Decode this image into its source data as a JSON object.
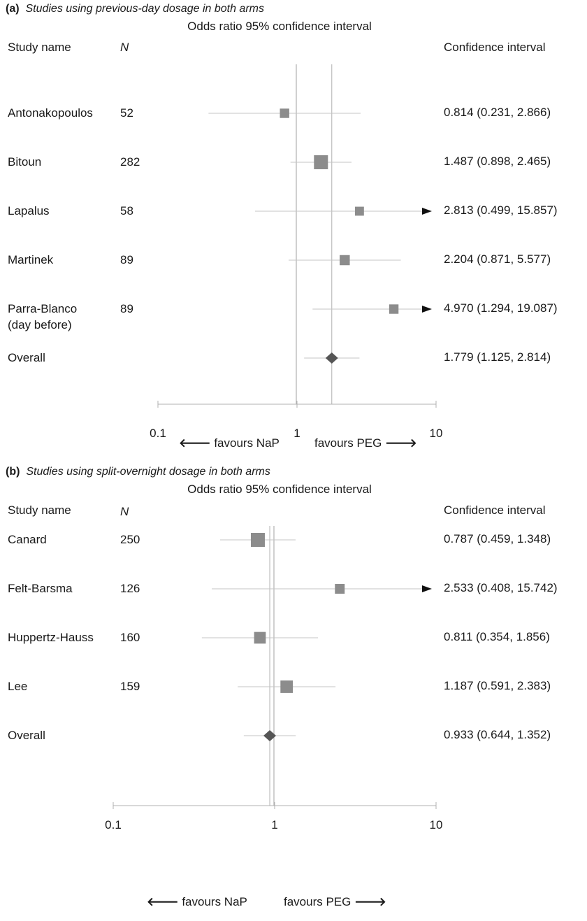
{
  "chart_data": [
    {
      "type": "forest",
      "panel_label": "(a)",
      "title": "Studies using previous-day dosage in both arms",
      "subtitle": "Odds ratio 95% confidence interval",
      "columns": {
        "study": "Study name",
        "n": "N",
        "ci": "Confidence interval"
      },
      "x_scale": "log",
      "xlim": [
        0.1,
        10
      ],
      "x_ticks": [
        "0.1",
        "1",
        "10"
      ],
      "favours_left": "favours NaP",
      "favours_right": "favours PEG",
      "studies": [
        {
          "name": [
            "Antonakopoulos"
          ],
          "n": "52",
          "or": 0.814,
          "lo": 0.231,
          "hi": 2.866,
          "weight": 0.4,
          "ci_text": "0.814 (0.231, 2.866)"
        },
        {
          "name": [
            "Bitoun"
          ],
          "n": "282",
          "or": 1.487,
          "lo": 0.898,
          "hi": 2.465,
          "weight": 1.0,
          "ci_text": "1.487 (0.898, 2.465)"
        },
        {
          "name": [
            "Lapalus"
          ],
          "n": "58",
          "or": 2.813,
          "lo": 0.499,
          "hi": 15.857,
          "weight": 0.35,
          "ci_text": "2.813 (0.499, 15.857)"
        },
        {
          "name": [
            "Martinek"
          ],
          "n": "89",
          "or": 2.204,
          "lo": 0.871,
          "hi": 5.577,
          "weight": 0.5,
          "ci_text": "2.204 (0.871, 5.577)"
        },
        {
          "name": [
            "Parra-Blanco",
            "(day before)"
          ],
          "n": "89",
          "or": 4.97,
          "lo": 1.294,
          "hi": 19.087,
          "weight": 0.4,
          "ci_text": "4.970 (1.294, 19.087)"
        }
      ],
      "overall": {
        "name": "Overall",
        "or": 1.779,
        "lo": 1.125,
        "hi": 2.814,
        "ci_text": "1.779 (1.125, 2.814)"
      }
    },
    {
      "type": "forest",
      "panel_label": "(b)",
      "title": "Studies using split-overnight dosage in both arms",
      "subtitle": "Odds ratio 95% confidence interval",
      "columns": {
        "study": "Study name",
        "n": "N",
        "ci": "Confidence interval"
      },
      "x_scale": "log",
      "xlim": [
        0.1,
        10
      ],
      "x_ticks": [
        "0.1",
        "1",
        "10"
      ],
      "favours_left": "favours NaP",
      "favours_right": "favours PEG",
      "studies": [
        {
          "name": [
            "Canard"
          ],
          "n": "250",
          "or": 0.787,
          "lo": 0.459,
          "hi": 1.348,
          "weight": 1.0,
          "ci_text": "0.787 (0.459, 1.348)"
        },
        {
          "name": [
            "Felt-Barsma"
          ],
          "n": "126",
          "or": 2.533,
          "lo": 0.408,
          "hi": 15.742,
          "weight": 0.45,
          "ci_text": "2.533 (0.408, 15.742)"
        },
        {
          "name": [
            "Huppertz-Hauss"
          ],
          "n": "160",
          "or": 0.811,
          "lo": 0.354,
          "hi": 1.856,
          "weight": 0.7,
          "ci_text": "0.811 (0.354, 1.856)"
        },
        {
          "name": [
            "Lee"
          ],
          "n": "159",
          "or": 1.187,
          "lo": 0.591,
          "hi": 2.383,
          "weight": 0.8,
          "ci_text": "1.187 (0.591, 2.383)"
        }
      ],
      "overall": {
        "name": "Overall",
        "or": 0.933,
        "lo": 0.644,
        "hi": 1.352,
        "ci_text": "0.933 (0.644, 1.352)"
      }
    }
  ],
  "colors": {
    "square": "#8c8c8c",
    "diamond": "#555555",
    "axis": "#b0b0b0",
    "ci_line": "#c4c4c4",
    "text": "#1a1a1a"
  }
}
